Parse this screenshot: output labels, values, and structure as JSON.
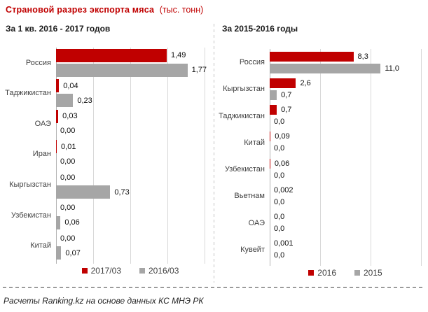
{
  "page": {
    "title": "Страновой разрез экспорта мяса",
    "title_unit": "(тыс. тонн)",
    "footer": "Расчеты Ranking.kz на основе данных КС МНЭ РК"
  },
  "colors": {
    "accent_red": "#C00000",
    "series_gray": "#A6A6A6",
    "gridline": "#D8D8D8"
  },
  "chart_data": [
    {
      "type": "bar",
      "orientation": "horizontal",
      "title": "За 1 кв. 2016 - 2017 годов",
      "categories": [
        "Россия",
        "Таджикистан",
        "ОАЭ",
        "Иран",
        "Кыргызстан",
        "Узбекистан",
        "Китай"
      ],
      "xlim": [
        0,
        2.0
      ],
      "gridline_step": 0.5,
      "grid": true,
      "legend_position": "bottom",
      "series": [
        {
          "name": "2017/03",
          "color": "#C00000",
          "values": [
            1.49,
            0.04,
            0.03,
            0.01,
            0.0,
            0.0,
            0.0
          ],
          "labels": [
            "1,49",
            "0,04",
            "0,03",
            "0,01",
            "0,00",
            "0,00",
            "0,00"
          ]
        },
        {
          "name": "2016/03",
          "color": "#A6A6A6",
          "values": [
            1.77,
            0.23,
            0.0,
            0.0,
            0.73,
            0.06,
            0.07
          ],
          "labels": [
            "1,77",
            "0,23",
            "0,00",
            "0,00",
            "0,73",
            "0,06",
            "0,07"
          ]
        }
      ]
    },
    {
      "type": "bar",
      "orientation": "horizontal",
      "title": "За 2015-2016 годы",
      "categories": [
        "Россия",
        "Кыргызстан",
        "Таджикистан",
        "Китай",
        "Узбекистан",
        "Вьетнам",
        "ОАЭ",
        "Кувейт"
      ],
      "xlim": [
        0,
        15
      ],
      "gridline_step": 5,
      "grid": true,
      "legend_position": "bottom",
      "series": [
        {
          "name": "2016",
          "color": "#C00000",
          "values": [
            8.3,
            2.6,
            0.7,
            0.09,
            0.06,
            0.002,
            0.0,
            0.001
          ],
          "labels": [
            "8,3",
            "2,6",
            "0,7",
            "0,09",
            "0,06",
            "0,002",
            "0,0",
            "0,001"
          ]
        },
        {
          "name": "2015",
          "color": "#A6A6A6",
          "values": [
            11.0,
            0.7,
            0.0,
            0.0,
            0.0,
            0.0,
            0.0,
            0.0
          ],
          "labels": [
            "11,0",
            "0,7",
            "0,0",
            "0,0",
            "0,0",
            "0,0",
            "0,0",
            "0,0"
          ]
        }
      ]
    }
  ]
}
